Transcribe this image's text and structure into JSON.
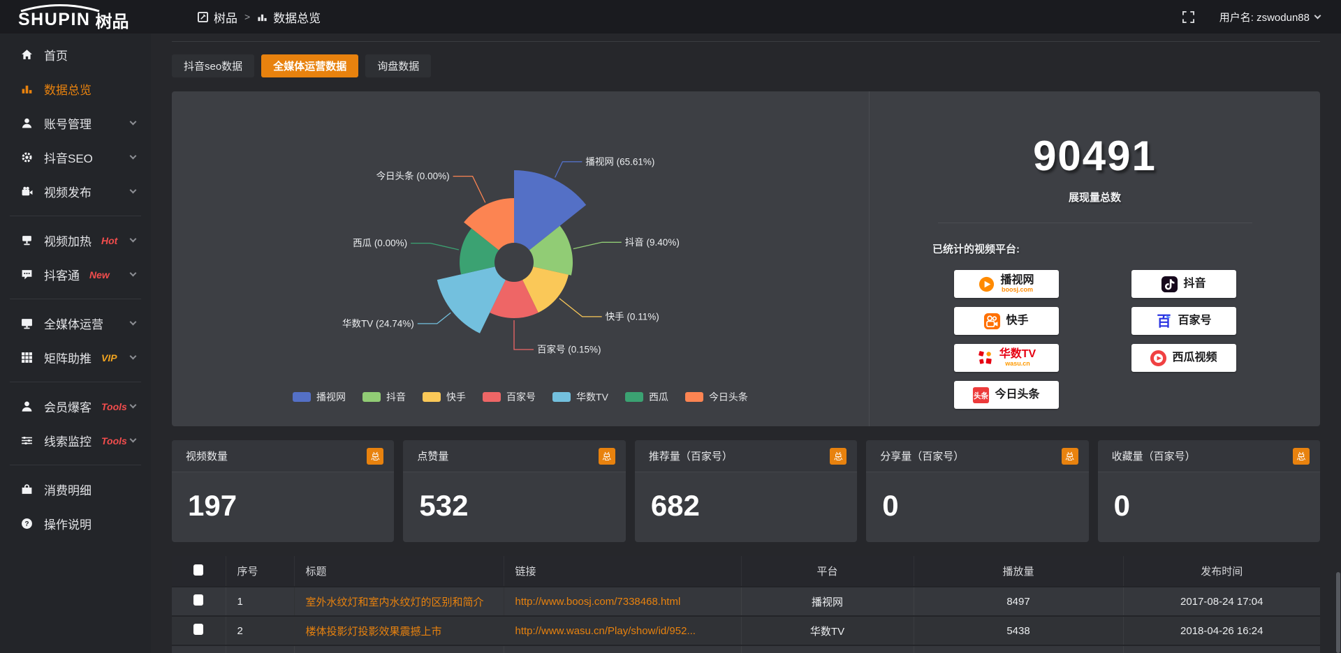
{
  "accent": "#e8820e",
  "topbar": {
    "logo_en": "SHUPIN",
    "logo_cn": "树品",
    "breadcrumb_root": "树品",
    "breadcrumb_separator": ">",
    "breadcrumb_current": "数据总览",
    "username": "用户名: zswodun88"
  },
  "sidebar": {
    "items": [
      {
        "icon": "home",
        "label": "首页"
      },
      {
        "icon": "chart",
        "label": "数据总览",
        "active": true
      },
      {
        "icon": "user",
        "label": "账号管理",
        "chevron": true
      },
      {
        "icon": "gear",
        "label": "抖音SEO",
        "chevron": true
      },
      {
        "icon": "video",
        "label": "视频发布",
        "chevron": true
      },
      {
        "divider": true
      },
      {
        "icon": "heat",
        "label": "视频加热",
        "tag": "Hot",
        "tag_color": "#f34d4d",
        "chevron": true
      },
      {
        "icon": "chat",
        "label": "抖客通",
        "tag": "New",
        "tag_color": "#f34d4d",
        "chevron": true
      },
      {
        "divider": true
      },
      {
        "icon": "monitor",
        "label": "全媒体运营",
        "chevron": true
      },
      {
        "icon": "grid",
        "label": "矩阵助推",
        "tag": "VIP",
        "tag_color": "#f0a31f",
        "chevron": true
      },
      {
        "divider": true
      },
      {
        "icon": "user-solid",
        "label": "会员爆客",
        "tag": "Tools",
        "tag_color": "#f34d4d",
        "chevron": true
      },
      {
        "icon": "sliders",
        "label": "线索监控",
        "tag": "Tools",
        "tag_color": "#f34d4d",
        "chevron": true
      },
      {
        "divider": true
      },
      {
        "icon": "wallet",
        "label": "消费明细"
      },
      {
        "icon": "question",
        "label": "操作说明"
      }
    ]
  },
  "tabs": [
    {
      "label": "抖音seo数据",
      "active": false
    },
    {
      "label": "全媒体运营数据",
      "active": true
    },
    {
      "label": "询盘数据",
      "active": false
    }
  ],
  "chart_data": {
    "type": "pie",
    "variant": "nightingale-rose-donut",
    "items": [
      {
        "name": "播视网",
        "percent": 65.61,
        "color": "#5470c6",
        "radius": 132
      },
      {
        "name": "抖音",
        "percent": 9.4,
        "color": "#91cc75",
        "radius": 84
      },
      {
        "name": "快手",
        "percent": 0.11,
        "color": "#fac858",
        "radius": 80
      },
      {
        "name": "百家号",
        "percent": 0.15,
        "color": "#ee6666",
        "radius": 80
      },
      {
        "name": "华数TV",
        "percent": 24.74,
        "color": "#73c0de",
        "radius": 113
      },
      {
        "name": "西瓜",
        "percent": 0.0,
        "color": "#3ba272",
        "radius": 78
      },
      {
        "name": "今日头条",
        "percent": 0.0,
        "color": "#fc8452",
        "radius": 92
      }
    ],
    "inner_radius": 28,
    "start_angle_deg": 0,
    "direction": "clockwise",
    "legend_position": "bottom",
    "label_format": "{name} ({percent}%)"
  },
  "summary": {
    "total": "90491",
    "total_label": "展现量总数",
    "platforms_label": "已统计的视频平台:",
    "platform_columns": [
      [
        {
          "name": "播视网",
          "sub": "boosj.com",
          "logo": "boosj"
        },
        {
          "name": "快手",
          "logo": "kuaishou"
        },
        {
          "name": "华数TV",
          "sub": "wasu.cn",
          "logo": "wasu"
        },
        {
          "name": "今日头条",
          "logo": "toutiao"
        }
      ],
      [
        {
          "name": "抖音",
          "logo": "douyin"
        },
        {
          "name": "百家号",
          "logo": "baijia"
        },
        {
          "name": "西瓜视频",
          "logo": "xigua"
        }
      ]
    ]
  },
  "stat_cards": [
    {
      "title": "视频数量",
      "badge": "总",
      "value": "197"
    },
    {
      "title": "点赞量",
      "badge": "总",
      "value": "532"
    },
    {
      "title": "推荐量（百家号）",
      "badge": "总",
      "value": "682"
    },
    {
      "title": "分享量（百家号）",
      "badge": "总",
      "value": "0"
    },
    {
      "title": "收藏量（百家号）",
      "badge": "总",
      "value": "0"
    }
  ],
  "table": {
    "headers": [
      "序号",
      "标题",
      "链接",
      "平台",
      "播放量",
      "发布时间"
    ],
    "rows": [
      {
        "index": "1",
        "title": "室外水纹灯和室内水纹灯的区别和简介",
        "link": "http://www.boosj.com/7338468.html",
        "platform": "播视网",
        "plays": "8497",
        "time": "2017-08-24 17:04"
      },
      {
        "index": "2",
        "title": "楼体投影灯投影效果震撼上市",
        "link": "http://www.wasu.cn/Play/show/id/952...",
        "platform": "华数TV",
        "plays": "5438",
        "time": "2018-04-26 16:24"
      }
    ]
  }
}
